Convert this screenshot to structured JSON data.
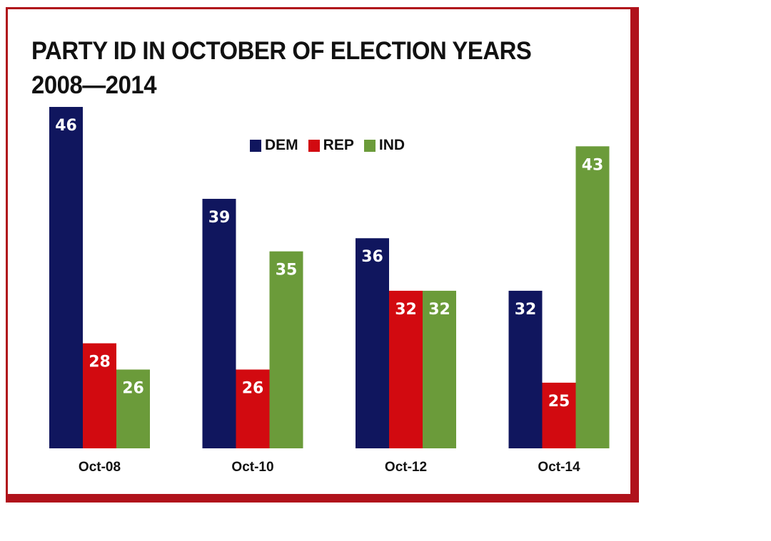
{
  "chart_data": {
    "type": "bar",
    "title_lines": [
      "PARTY ID IN OCTOBER OF ELECTION YEARS",
      "2008—2014"
    ],
    "categories": [
      "Oct-08",
      "Oct-10",
      "Oct-12",
      "Oct-14"
    ],
    "series": [
      {
        "name": "DEM",
        "values": [
          46,
          39,
          36,
          32
        ],
        "color": "#10165e"
      },
      {
        "name": "REP",
        "values": [
          28,
          26,
          32,
          25
        ],
        "color": "#d20a10"
      },
      {
        "name": "IND",
        "values": [
          26,
          35,
          32,
          43
        ],
        "color": "#6b9b3a"
      }
    ],
    "xlabel": "",
    "ylabel": "",
    "ylim": [
      20,
      46
    ],
    "data_labels": true,
    "legend_position": "top-center",
    "grid": false,
    "frame_color": "#b0121b"
  }
}
